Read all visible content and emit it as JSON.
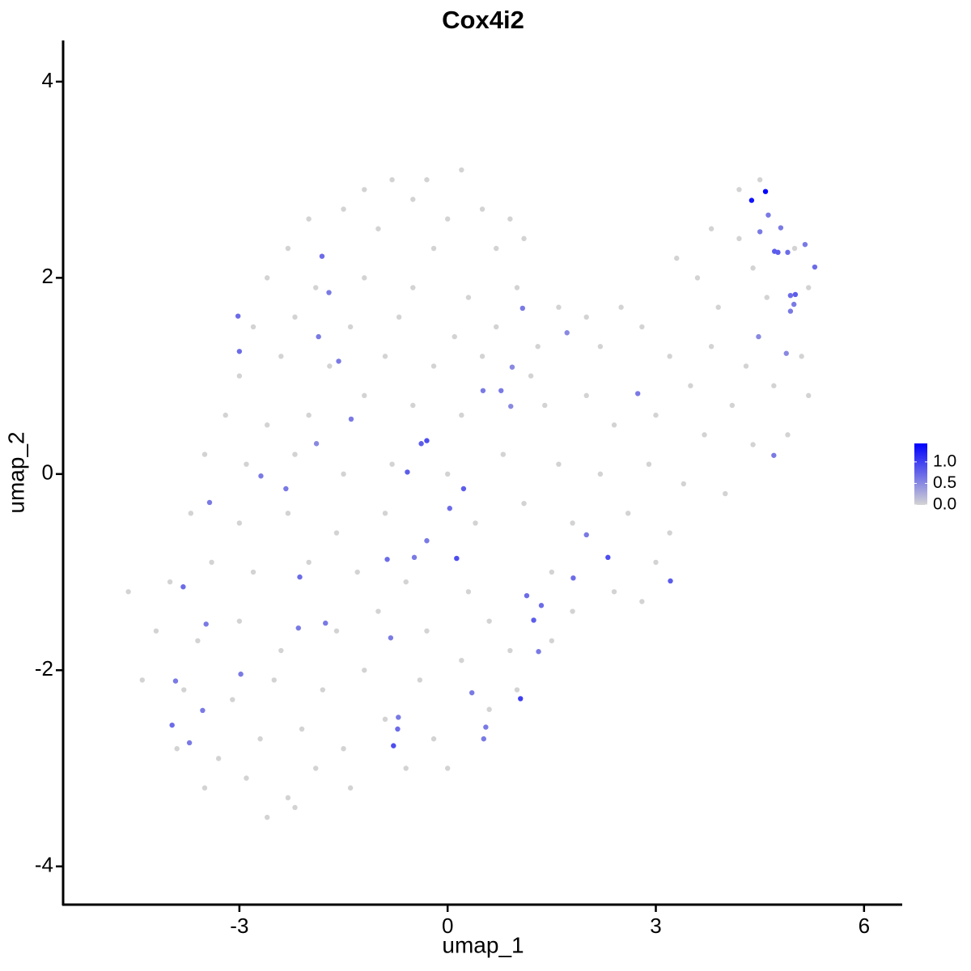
{
  "chart_data": {
    "type": "scatter",
    "title": "Cox4i2",
    "x_label": "umap_1",
    "y_label": "umap_2",
    "xlim": [
      -5.54,
      6.55
    ],
    "ylim": [
      -4.39,
      4.42
    ],
    "xticks": [
      -3,
      0,
      3,
      6
    ],
    "yticks": [
      -4,
      -2,
      0,
      2,
      4
    ],
    "colorlim": [
      0,
      1.43
    ],
    "colors": [
      "#d3d3d3",
      "#0000ff"
    ],
    "colorticks": [
      {
        "value": 0,
        "label": "0.0"
      },
      {
        "value": 0.5,
        "label": "0.5"
      },
      {
        "value": 1,
        "label": "1.0"
      }
    ],
    "x": [
      -1.2,
      -0.8,
      -0.3,
      0.2,
      -1.5,
      -0.5,
      0.5,
      0.9,
      -2.0,
      -1.0,
      0.0,
      1.1,
      -2.3,
      -0.2,
      0.7,
      -2.6,
      -1.9,
      -1.2,
      -0.5,
      0.3,
      1.0,
      1.6,
      -2.8,
      -2.2,
      -1.4,
      -0.7,
      0.1,
      0.7,
      1.3,
      2.0,
      2.5,
      -3.0,
      -2.4,
      -1.7,
      -0.9,
      -0.2,
      0.5,
      1.2,
      2.2,
      2.8,
      3.3,
      3.8,
      4.2,
      3.6,
      4.4,
      5.0,
      3.9,
      4.6,
      5.2,
      3.2,
      3.8,
      4.3,
      5.1,
      3.5,
      4.1,
      4.7,
      5.2,
      3.0,
      3.7,
      4.4,
      4.9,
      4.2,
      4.5,
      -3.2,
      -2.6,
      -2.0,
      -1.2,
      -0.5,
      0.2,
      1.4,
      2.0,
      2.4,
      -3.5,
      -2.9,
      -2.2,
      -1.5,
      -0.8,
      0.0,
      0.8,
      1.6,
      2.2,
      2.9,
      3.4,
      4.0,
      -3.7,
      -3.0,
      -2.3,
      -1.6,
      -0.9,
      0.4,
      1.1,
      1.8,
      2.6,
      3.2,
      -4.6,
      -4.0,
      -3.4,
      -2.8,
      -2.0,
      -1.3,
      -0.6,
      0.3,
      1.5,
      2.4,
      3.0,
      -4.2,
      -3.6,
      -3.0,
      -2.4,
      -1.6,
      -1.0,
      -0.3,
      0.6,
      1.8,
      2.8,
      -4.4,
      -3.8,
      -3.1,
      -2.5,
      -1.8,
      -1.2,
      -0.4,
      0.2,
      0.9,
      1.5,
      -3.9,
      -3.3,
      -2.7,
      -2.1,
      -1.5,
      -0.9,
      -0.2,
      0.6,
      1.0,
      -3.5,
      -2.9,
      -2.3,
      -1.9,
      -1.4,
      -0.6,
      0.0,
      -2.6,
      -2.2,
      4.38,
      4.58,
      4.62,
      4.5,
      4.8,
      4.71,
      4.76,
      4.9,
      5.15,
      5.29,
      5.01,
      4.94,
      4.99,
      4.94,
      4.48,
      4.88,
      4.7,
      -1.81,
      -1.71,
      -3.02,
      -3.0,
      -1.86,
      -1.57,
      -1.39,
      -1.89,
      -2.69,
      -2.33,
      -3.43,
      1.08,
      1.72,
      0.93,
      0.77,
      0.51,
      0.91,
      2.74,
      -0.38,
      -0.3,
      -0.58,
      0.23,
      0.03,
      -0.3,
      -0.48,
      -0.87,
      0.13,
      2.0,
      2.31,
      1.81,
      3.21,
      -2.13,
      -3.81,
      1.14,
      1.35,
      1.24,
      -3.48,
      -2.15,
      -1.76,
      -0.82,
      1.31,
      -2.98,
      -3.92,
      0.35,
      1.05,
      -3.53,
      -0.71,
      -3.97,
      0.55,
      -0.72,
      0.52,
      -3.72,
      -0.78
    ],
    "values": [
      2.9,
      3.0,
      3.0,
      3.1,
      2.7,
      2.8,
      2.7,
      2.6,
      2.6,
      2.5,
      2.6,
      2.4,
      2.3,
      2.3,
      2.3,
      2.0,
      1.9,
      2.0,
      1.9,
      1.8,
      1.9,
      1.7,
      1.5,
      1.6,
      1.5,
      1.6,
      1.4,
      1.5,
      1.3,
      1.6,
      1.7,
      1.0,
      1.2,
      1.1,
      1.2,
      1.1,
      1.2,
      1.0,
      1.3,
      1.5,
      2.2,
      2.5,
      2.4,
      2.0,
      2.1,
      2.3,
      1.7,
      1.8,
      1.9,
      1.2,
      1.3,
      1.1,
      1.2,
      0.9,
      0.7,
      0.9,
      0.8,
      0.6,
      0.4,
      0.3,
      0.4,
      2.9,
      3.0,
      0.6,
      0.5,
      0.6,
      0.8,
      0.7,
      0.6,
      0.7,
      0.8,
      0.5,
      0.2,
      0.1,
      0.2,
      0.0,
      0.1,
      0.0,
      0.2,
      0.1,
      0.0,
      0.1,
      -0.1,
      -0.2,
      -0.4,
      -0.5,
      -0.4,
      -0.6,
      -0.4,
      -0.5,
      -0.3,
      -0.5,
      -0.4,
      -0.6,
      -1.2,
      -1.1,
      -0.9,
      -1.0,
      -0.9,
      -1.0,
      -1.1,
      -1.2,
      -1.0,
      -1.2,
      -0.9,
      -1.6,
      -1.7,
      -1.5,
      -1.8,
      -1.6,
      -1.4,
      -1.6,
      -1.5,
      -1.4,
      -1.3,
      -2.1,
      -2.2,
      -2.3,
      -2.1,
      -2.2,
      -2.0,
      -2.1,
      -1.9,
      -1.8,
      -1.7,
      -2.8,
      -2.9,
      -2.7,
      -2.6,
      -2.8,
      -2.5,
      -2.7,
      -2.4,
      -2.2,
      -3.2,
      -3.1,
      -3.3,
      -3.0,
      -3.2,
      -3.0,
      -3.0,
      -3.5,
      -3.4,
      2.79,
      2.88,
      2.64,
      2.47,
      2.51,
      2.27,
      2.26,
      2.26,
      2.34,
      2.11,
      1.83,
      1.82,
      1.73,
      1.66,
      1.4,
      1.23,
      0.19,
      2.22,
      1.85,
      1.61,
      1.25,
      1.4,
      1.15,
      0.56,
      0.31,
      -0.02,
      -0.15,
      -0.29,
      1.69,
      1.44,
      1.09,
      0.85,
      0.85,
      0.69,
      0.82,
      0.31,
      0.34,
      0.02,
      -0.15,
      -0.35,
      -0.68,
      -0.85,
      -0.87,
      -0.86,
      -0.62,
      -0.85,
      -1.06,
      -1.09,
      -1.05,
      -1.15,
      -1.24,
      -1.34,
      -1.49,
      -1.53,
      -1.57,
      -1.52,
      -1.67,
      -1.81,
      -2.04,
      -2.11,
      -2.23,
      -2.29,
      -2.41,
      -2.48,
      -2.56,
      -2.58,
      -2.6,
      -2.7,
      -2.74,
      -2.77
    ],
    "expression": [
      0,
      0,
      0,
      0,
      0,
      0,
      0,
      0,
      0,
      0,
      0,
      0,
      0,
      0,
      0,
      0,
      0,
      0,
      0,
      0,
      0,
      0,
      0,
      0,
      0,
      0,
      0,
      0,
      0,
      0,
      0,
      0,
      0,
      0,
      0,
      0,
      0,
      0,
      0,
      0,
      0,
      0,
      0,
      0,
      0,
      0,
      0,
      0,
      0,
      0,
      0,
      0,
      0,
      0,
      0,
      0,
      0,
      0,
      0,
      0,
      0,
      0,
      0,
      0,
      0,
      0,
      0,
      0,
      0,
      0,
      0,
      0,
      0,
      0,
      0,
      0,
      0,
      0,
      0,
      0,
      0,
      0,
      0,
      0,
      0,
      0,
      0,
      0,
      0,
      0,
      0,
      0,
      0,
      0,
      0,
      0,
      0,
      0,
      0,
      0,
      0,
      0,
      0,
      0,
      0,
      0,
      0,
      0,
      0,
      0,
      0,
      0,
      0,
      0,
      0,
      0,
      0,
      0,
      0,
      0,
      0,
      0,
      0,
      0,
      0,
      0,
      0,
      0,
      0,
      0,
      0,
      0,
      0,
      0,
      0,
      0,
      0,
      0,
      0,
      0,
      0,
      0,
      0,
      1.3,
      1.4,
      0.6,
      0.6,
      0.6,
      0.8,
      0.8,
      0.7,
      0.6,
      0.7,
      0.8,
      0.7,
      0.6,
      0.6,
      0.5,
      0.5,
      0.6,
      0.7,
      0.6,
      0.7,
      0.7,
      0.6,
      0.6,
      0.6,
      0.5,
      0.6,
      0.6,
      0.6,
      0.6,
      0.5,
      0.5,
      0.6,
      0.6,
      0.5,
      0.6,
      0.8,
      0.9,
      0.8,
      0.8,
      0.7,
      0.6,
      0.6,
      0.7,
      0.9,
      0.6,
      0.9,
      0.7,
      0.8,
      0.7,
      0.7,
      0.7,
      0.7,
      0.8,
      0.6,
      0.6,
      0.6,
      0.6,
      0.6,
      0.6,
      0.6,
      0.6,
      1.0,
      0.6,
      0.6,
      0.7,
      0.6,
      0.7,
      0.6,
      0.6,
      0.9
    ]
  }
}
